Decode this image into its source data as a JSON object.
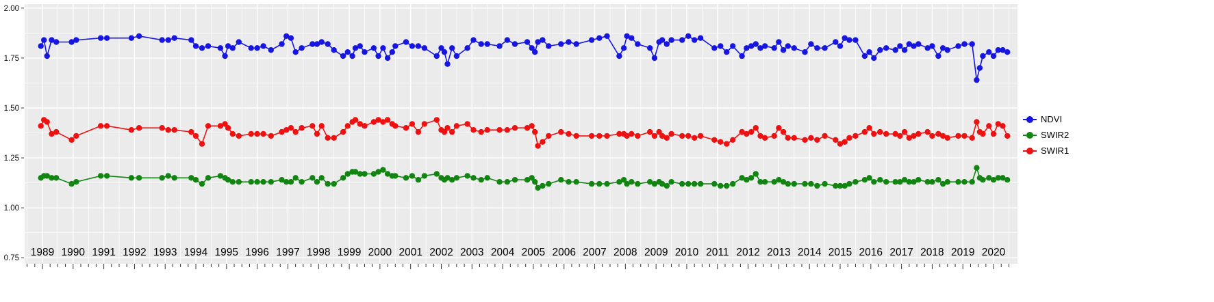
{
  "chart_data": {
    "type": "line",
    "title": "",
    "xlabel": "",
    "ylabel": "",
    "panel_bg": "#EBEBEB",
    "grid_color": "#FFFFFF",
    "xlim": [
      1988.42,
      2020.78
    ],
    "ylim": [
      0.72,
      2.02
    ],
    "x_ticks": [
      1989,
      1990,
      1991,
      1992,
      1993,
      1994,
      1995,
      1996,
      1997,
      1998,
      1999,
      2000,
      2001,
      2002,
      2003,
      2004,
      2005,
      2006,
      2007,
      2008,
      2009,
      2010,
      2011,
      2012,
      2013,
      2014,
      2015,
      2016,
      2017,
      2018,
      2019,
      2020
    ],
    "x_tick_labels": [
      "1989",
      "1990",
      "1991",
      "1992",
      "1993",
      "1994",
      "1995",
      "1996",
      "1997",
      "1998",
      "1999",
      "2000",
      "2001",
      "2002",
      "2003",
      "2004",
      "2005",
      "2006",
      "2007",
      "2008",
      "2009",
      "2010",
      "2011",
      "2012",
      "2013",
      "2014",
      "2015",
      "2016",
      "2017",
      "2018",
      "2019",
      "2020"
    ],
    "y_ticks": [
      2.0,
      1.75,
      1.5,
      1.25,
      1.0,
      0.75
    ],
    "y_tick_labels": [
      "2.00",
      "1.75",
      "1.50",
      "1.25",
      "1.00",
      "0.75"
    ],
    "legend": {
      "position": "right",
      "items": [
        "NDVI",
        "SWIR2",
        "SWIR1"
      ]
    },
    "x": [
      1988.95,
      1989.05,
      1989.15,
      1989.3,
      1989.45,
      1989.95,
      1990.1,
      1990.9,
      1991.1,
      1991.9,
      1992.15,
      1992.9,
      1993.1,
      1993.3,
      1993.85,
      1994.0,
      1994.2,
      1994.4,
      1994.8,
      1994.95,
      1995.05,
      1995.2,
      1995.4,
      1995.8,
      1996.0,
      1996.2,
      1996.45,
      1996.8,
      1996.95,
      1997.1,
      1997.25,
      1997.45,
      1997.8,
      1997.95,
      1998.1,
      1998.3,
      1998.5,
      1998.8,
      1998.95,
      1999.1,
      1999.2,
      1999.35,
      1999.5,
      1999.8,
      1999.95,
      2000.1,
      2000.25,
      2000.4,
      2000.5,
      2000.85,
      2001.05,
      2001.25,
      2001.45,
      2001.85,
      2002.0,
      2002.1,
      2002.2,
      2002.35,
      2002.5,
      2002.85,
      2003.05,
      2003.3,
      2003.5,
      2003.9,
      2004.15,
      2004.4,
      2004.8,
      2004.95,
      2005.05,
      2005.15,
      2005.3,
      2005.5,
      2005.9,
      2006.15,
      2006.4,
      2006.9,
      2007.15,
      2007.4,
      2007.8,
      2007.95,
      2008.05,
      2008.2,
      2008.4,
      2008.8,
      2008.95,
      2009.1,
      2009.2,
      2009.35,
      2009.5,
      2009.85,
      2010.05,
      2010.25,
      2010.45,
      2010.9,
      2011.1,
      2011.3,
      2011.5,
      2011.8,
      2011.95,
      2012.1,
      2012.25,
      2012.4,
      2012.55,
      2012.85,
      2013.0,
      2013.15,
      2013.3,
      2013.5,
      2013.85,
      2014.05,
      2014.25,
      2014.5,
      2014.85,
      2015.0,
      2015.15,
      2015.3,
      2015.5,
      2015.8,
      2015.95,
      2016.1,
      2016.3,
      2016.5,
      2016.8,
      2016.95,
      2017.1,
      2017.25,
      2017.4,
      2017.55,
      2017.85,
      2018.0,
      2018.2,
      2018.35,
      2018.5,
      2018.85,
      2019.05,
      2019.3,
      2019.45,
      2019.55,
      2019.65,
      2019.85,
      2020.0,
      2020.15,
      2020.3,
      2020.45
    ],
    "series": [
      {
        "name": "NDVI",
        "color": "#1616E0",
        "values": [
          1.81,
          1.84,
          1.76,
          1.84,
          1.83,
          1.83,
          1.84,
          1.85,
          1.85,
          1.85,
          1.86,
          1.84,
          1.84,
          1.85,
          1.84,
          1.81,
          1.8,
          1.81,
          1.8,
          1.76,
          1.81,
          1.8,
          1.83,
          1.8,
          1.8,
          1.81,
          1.79,
          1.82,
          1.86,
          1.85,
          1.78,
          1.8,
          1.82,
          1.82,
          1.83,
          1.82,
          1.79,
          1.76,
          1.78,
          1.76,
          1.8,
          1.81,
          1.78,
          1.8,
          1.76,
          1.8,
          1.75,
          1.78,
          1.81,
          1.83,
          1.81,
          1.81,
          1.8,
          1.76,
          1.8,
          1.78,
          1.72,
          1.8,
          1.76,
          1.8,
          1.84,
          1.82,
          1.82,
          1.81,
          1.84,
          1.82,
          1.83,
          1.8,
          1.78,
          1.83,
          1.84,
          1.81,
          1.82,
          1.83,
          1.82,
          1.84,
          1.85,
          1.86,
          1.76,
          1.8,
          1.86,
          1.85,
          1.82,
          1.8,
          1.75,
          1.83,
          1.84,
          1.82,
          1.84,
          1.84,
          1.86,
          1.84,
          1.85,
          1.8,
          1.81,
          1.78,
          1.81,
          1.76,
          1.8,
          1.81,
          1.82,
          1.8,
          1.81,
          1.8,
          1.83,
          1.79,
          1.81,
          1.8,
          1.78,
          1.82,
          1.8,
          1.8,
          1.83,
          1.81,
          1.85,
          1.84,
          1.84,
          1.76,
          1.78,
          1.75,
          1.79,
          1.8,
          1.79,
          1.81,
          1.79,
          1.82,
          1.81,
          1.82,
          1.8,
          1.81,
          1.76,
          1.8,
          1.79,
          1.81,
          1.82,
          1.82,
          1.64,
          1.7,
          1.76,
          1.78,
          1.76,
          1.79,
          1.79,
          1.78
        ]
      },
      {
        "name": "SWIR2",
        "color": "#128412",
        "values": [
          1.15,
          1.16,
          1.16,
          1.15,
          1.15,
          1.12,
          1.13,
          1.16,
          1.16,
          1.15,
          1.15,
          1.15,
          1.16,
          1.15,
          1.15,
          1.14,
          1.12,
          1.15,
          1.16,
          1.15,
          1.14,
          1.13,
          1.13,
          1.13,
          1.13,
          1.13,
          1.13,
          1.14,
          1.13,
          1.13,
          1.15,
          1.13,
          1.15,
          1.13,
          1.15,
          1.12,
          1.12,
          1.15,
          1.17,
          1.18,
          1.18,
          1.17,
          1.17,
          1.17,
          1.18,
          1.19,
          1.17,
          1.16,
          1.16,
          1.15,
          1.16,
          1.14,
          1.16,
          1.17,
          1.15,
          1.14,
          1.15,
          1.14,
          1.15,
          1.16,
          1.15,
          1.14,
          1.15,
          1.13,
          1.13,
          1.14,
          1.14,
          1.15,
          1.13,
          1.1,
          1.11,
          1.12,
          1.14,
          1.13,
          1.13,
          1.12,
          1.12,
          1.12,
          1.13,
          1.14,
          1.12,
          1.13,
          1.12,
          1.13,
          1.12,
          1.13,
          1.12,
          1.11,
          1.13,
          1.12,
          1.12,
          1.12,
          1.12,
          1.12,
          1.11,
          1.11,
          1.12,
          1.15,
          1.14,
          1.15,
          1.17,
          1.13,
          1.13,
          1.13,
          1.14,
          1.13,
          1.12,
          1.12,
          1.12,
          1.12,
          1.11,
          1.12,
          1.11,
          1.11,
          1.11,
          1.12,
          1.13,
          1.14,
          1.15,
          1.13,
          1.14,
          1.13,
          1.13,
          1.13,
          1.14,
          1.13,
          1.13,
          1.14,
          1.13,
          1.13,
          1.14,
          1.12,
          1.13,
          1.13,
          1.13,
          1.13,
          1.2,
          1.15,
          1.14,
          1.15,
          1.14,
          1.15,
          1.15,
          1.14
        ]
      },
      {
        "name": "SWIR1",
        "color": "#EE1111",
        "values": [
          1.41,
          1.44,
          1.43,
          1.37,
          1.38,
          1.34,
          1.36,
          1.41,
          1.41,
          1.39,
          1.4,
          1.4,
          1.39,
          1.39,
          1.38,
          1.36,
          1.32,
          1.41,
          1.41,
          1.42,
          1.4,
          1.37,
          1.36,
          1.37,
          1.37,
          1.37,
          1.36,
          1.38,
          1.39,
          1.4,
          1.38,
          1.4,
          1.41,
          1.37,
          1.41,
          1.35,
          1.35,
          1.38,
          1.41,
          1.43,
          1.44,
          1.42,
          1.41,
          1.43,
          1.44,
          1.43,
          1.44,
          1.42,
          1.41,
          1.4,
          1.42,
          1.38,
          1.42,
          1.44,
          1.39,
          1.38,
          1.4,
          1.38,
          1.41,
          1.42,
          1.39,
          1.38,
          1.39,
          1.39,
          1.39,
          1.4,
          1.4,
          1.41,
          1.38,
          1.31,
          1.33,
          1.36,
          1.38,
          1.37,
          1.36,
          1.36,
          1.36,
          1.36,
          1.37,
          1.37,
          1.36,
          1.37,
          1.36,
          1.38,
          1.36,
          1.38,
          1.36,
          1.35,
          1.37,
          1.36,
          1.36,
          1.35,
          1.36,
          1.34,
          1.33,
          1.32,
          1.34,
          1.38,
          1.37,
          1.38,
          1.4,
          1.36,
          1.35,
          1.36,
          1.4,
          1.38,
          1.35,
          1.35,
          1.34,
          1.35,
          1.34,
          1.36,
          1.34,
          1.32,
          1.33,
          1.35,
          1.36,
          1.38,
          1.4,
          1.37,
          1.38,
          1.37,
          1.37,
          1.36,
          1.38,
          1.35,
          1.36,
          1.37,
          1.38,
          1.36,
          1.37,
          1.36,
          1.35,
          1.36,
          1.36,
          1.35,
          1.43,
          1.38,
          1.37,
          1.41,
          1.37,
          1.42,
          1.41,
          1.36
        ]
      }
    ]
  }
}
